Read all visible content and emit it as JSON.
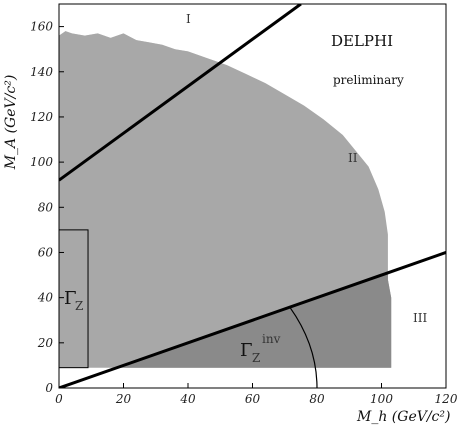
{
  "chart_data": {
    "type": "area",
    "title": "DELPHI",
    "subtitle": "preliminary",
    "xlabel": "M_h (GeV/c²)",
    "ylabel": "M_A (GeV/c²)",
    "xlim": [
      0,
      120
    ],
    "ylim": [
      0,
      170
    ],
    "x_ticks": [
      0,
      20,
      40,
      60,
      80,
      100,
      120
    ],
    "y_ticks": [
      0,
      20,
      40,
      60,
      80,
      100,
      120,
      140,
      160
    ],
    "regions": [
      "I",
      "II",
      "III"
    ],
    "excluded_boundary": {
      "x": [
        0,
        0,
        2,
        4,
        8,
        12,
        16,
        20,
        24,
        28,
        32,
        36,
        40,
        46,
        52,
        58,
        64,
        70,
        76,
        82,
        88,
        92,
        96,
        99,
        101,
        102,
        102,
        102,
        103,
        103,
        103,
        0
      ],
      "y": [
        9,
        156,
        158,
        157,
        156,
        157,
        155,
        157,
        154,
        153,
        152,
        150,
        149,
        146,
        143,
        139,
        135,
        130,
        125,
        119,
        112,
        105,
        98,
        88,
        78,
        68,
        58,
        48,
        40,
        30,
        9,
        9
      ]
    },
    "lines": [
      {
        "name": "upper",
        "x": [
          0,
          75
        ],
        "y": [
          92,
          170
        ]
      },
      {
        "name": "lower",
        "x": [
          0,
          120
        ],
        "y": [
          0,
          60
        ]
      }
    ],
    "gamma_z_box": {
      "x": [
        0,
        9
      ],
      "y": [
        9,
        70
      ]
    },
    "gamma_z_inv_arc": {
      "radius_approx": 80
    },
    "labels": {
      "gamma_z": "Γ",
      "gamma_z_sub": "Z",
      "gamma_z_inv": "Γ",
      "gamma_z_inv_sub": "Z",
      "gamma_z_inv_sup": "inv"
    }
  },
  "colors": {
    "region_I": "#d0d0d0",
    "region_II": "#a8a8a8",
    "region_III": "#8a8a8a",
    "lines": "#000000",
    "axis": "#000000"
  }
}
